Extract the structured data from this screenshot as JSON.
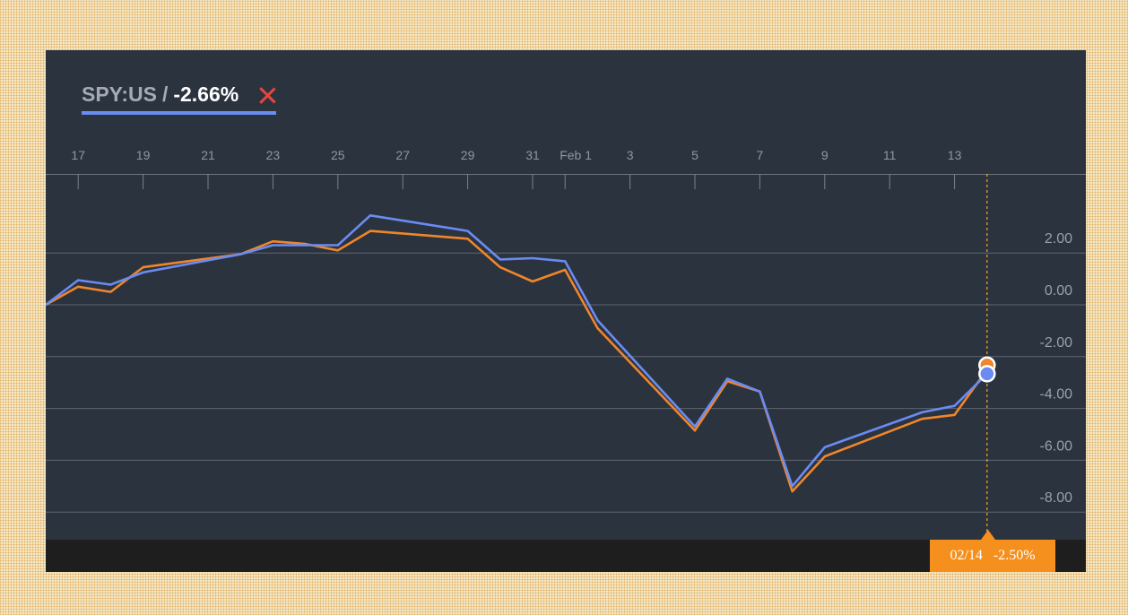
{
  "legend": {
    "ticker": "SPY:US",
    "separator": "/",
    "value": "-2.66%",
    "underline_color": "#6a8cf2",
    "close_color": "#e8453c"
  },
  "readout": {
    "date": "02/14",
    "value": "-2.50%",
    "background": "#f5901e"
  },
  "chart_data": {
    "type": "line",
    "x_tick_labels": [
      "17",
      "19",
      "21",
      "23",
      "25",
      "27",
      "29",
      "31",
      "Feb 1",
      "3",
      "5",
      "7",
      "9",
      "11",
      "13"
    ],
    "y_tick_labels": [
      "2.00",
      "0.00",
      "-2.00",
      "-4.00",
      "-6.00",
      "-8.00"
    ],
    "ylim": [
      -8.5,
      3.5
    ],
    "grid": true,
    "series": [
      {
        "color": "#6a8cf2",
        "values": [
          {
            "x": "01-16",
            "y": 0.0
          },
          {
            "x": "01-17",
            "y": 0.95
          },
          {
            "x": "01-18",
            "y": 0.78
          },
          {
            "x": "01-19",
            "y": 1.25
          },
          {
            "x": "01-22",
            "y": 1.95
          },
          {
            "x": "01-23",
            "y": 2.3
          },
          {
            "x": "01-25",
            "y": 2.3
          },
          {
            "x": "01-26",
            "y": 3.45
          },
          {
            "x": "01-29",
            "y": 2.85
          },
          {
            "x": "01-30",
            "y": 1.75
          },
          {
            "x": "01-31",
            "y": 1.8
          },
          {
            "x": "02-01",
            "y": 1.68
          },
          {
            "x": "02-02",
            "y": -0.6
          },
          {
            "x": "02-05",
            "y": -4.7
          },
          {
            "x": "02-06",
            "y": -2.85
          },
          {
            "x": "02-07",
            "y": -3.35
          },
          {
            "x": "02-08",
            "y": -7.0
          },
          {
            "x": "02-09",
            "y": -5.5
          },
          {
            "x": "02-12",
            "y": -4.15
          },
          {
            "x": "02-13",
            "y": -3.9
          },
          {
            "x": "02-14",
            "y": -2.66
          }
        ]
      },
      {
        "color": "#f0862a",
        "values": [
          {
            "x": "01-16",
            "y": 0.0
          },
          {
            "x": "01-17",
            "y": 0.7
          },
          {
            "x": "01-18",
            "y": 0.5
          },
          {
            "x": "01-19",
            "y": 1.45
          },
          {
            "x": "01-22",
            "y": 1.95
          },
          {
            "x": "01-23",
            "y": 2.45
          },
          {
            "x": "01-24",
            "y": 2.35
          },
          {
            "x": "01-25",
            "y": 2.1
          },
          {
            "x": "01-26",
            "y": 2.85
          },
          {
            "x": "01-29",
            "y": 2.55
          },
          {
            "x": "01-30",
            "y": 1.45
          },
          {
            "x": "01-31",
            "y": 0.9
          },
          {
            "x": "02-01",
            "y": 1.35
          },
          {
            "x": "02-02",
            "y": -0.9
          },
          {
            "x": "02-05",
            "y": -4.85
          },
          {
            "x": "02-06",
            "y": -2.95
          },
          {
            "x": "02-07",
            "y": -3.35
          },
          {
            "x": "02-08",
            "y": -7.2
          },
          {
            "x": "02-09",
            "y": -5.85
          },
          {
            "x": "02-12",
            "y": -4.4
          },
          {
            "x": "02-13",
            "y": -4.25
          },
          {
            "x": "02-14",
            "y": -2.5
          }
        ]
      }
    ],
    "readout_x": "02-14"
  }
}
